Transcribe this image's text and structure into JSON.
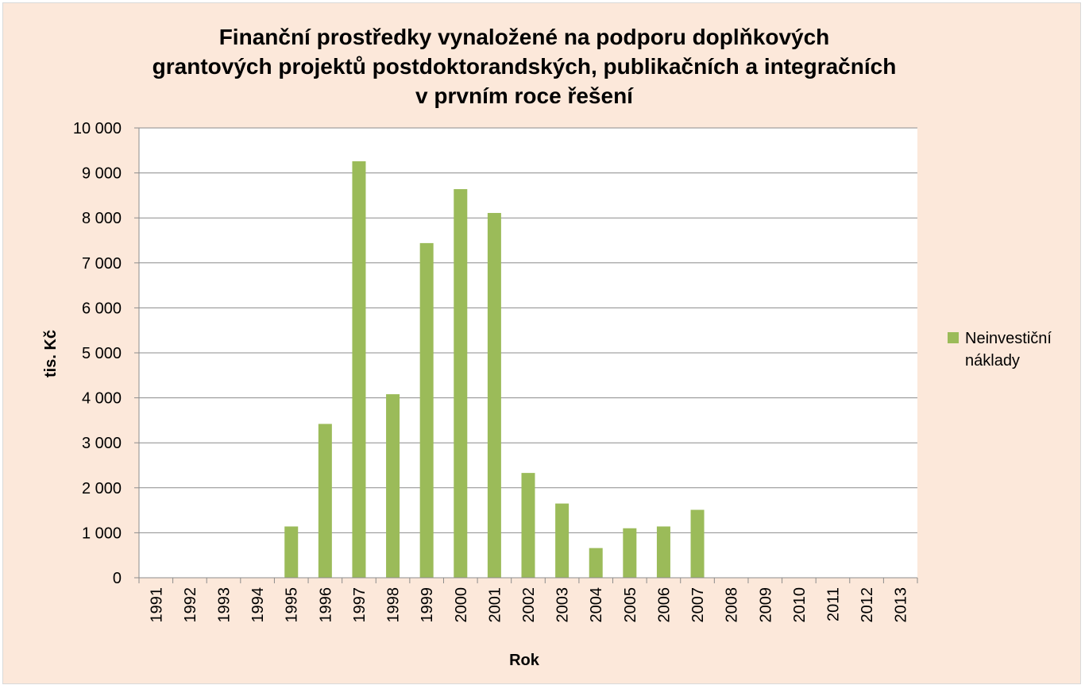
{
  "chart_data": {
    "type": "bar",
    "title": "Finanční prostředky vynaložené na podporu doplňkových\ngrantových projektů postdoktorandských, publikačních a integračních\nv prvním roce řešení",
    "xlabel": "Rok",
    "ylabel": "tis. Kč",
    "ylim": [
      0,
      10000
    ],
    "yticks": [
      "0",
      "1 000",
      "2 000",
      "3 000",
      "4 000",
      "5 000",
      "6 000",
      "7 000",
      "8 000",
      "9 000",
      "10 000"
    ],
    "categories": [
      "1991",
      "1992",
      "1993",
      "1994",
      "1995",
      "1996",
      "1997",
      "1998",
      "1999",
      "2000",
      "2001",
      "2002",
      "2003",
      "2004",
      "2005",
      "2006",
      "2007",
      "2008",
      "2009",
      "2010",
      "2011",
      "2012",
      "2013"
    ],
    "series": [
      {
        "name": "Neinvestiční náklady",
        "color": "#9bbb59",
        "values": [
          0,
          0,
          0,
          0,
          1140,
          3420,
          9260,
          4080,
          7440,
          8640,
          8110,
          2330,
          1650,
          660,
          1100,
          1140,
          1510,
          0,
          0,
          0,
          0,
          0,
          0
        ]
      }
    ],
    "grid": true,
    "legend": "right"
  }
}
